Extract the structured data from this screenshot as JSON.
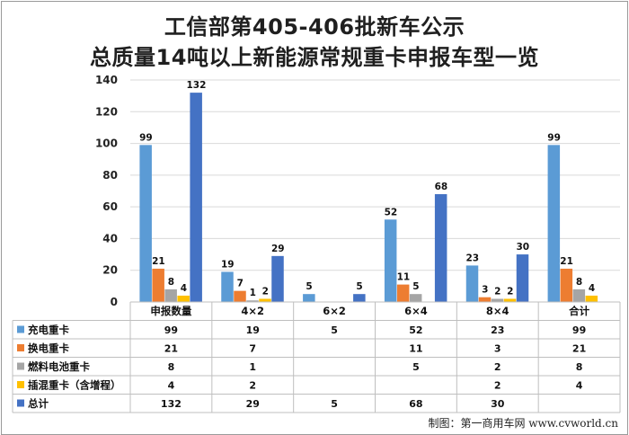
{
  "title_line1": "工信部第405-406批新车公示",
  "title_line2": "总质量14吨以上新能源常规重卡申报车型一览",
  "credit": "制图：第一商用车网 www.cvworld.cn",
  "chart_data": {
    "type": "bar",
    "categories": [
      "申报数量",
      "4×2",
      "6×2",
      "6×4",
      "8×4",
      "合计"
    ],
    "ylim": [
      0,
      140
    ],
    "yticks": [
      0,
      20,
      40,
      60,
      80,
      100,
      120,
      140
    ],
    "grid": true,
    "legend": "data-table",
    "series": [
      {
        "name": "充电重卡",
        "color": "#5b9bd5",
        "values": [
          99,
          19,
          5,
          52,
          23,
          99
        ]
      },
      {
        "name": "换电重卡",
        "color": "#ed7d31",
        "values": [
          21,
          7,
          null,
          11,
          3,
          21
        ]
      },
      {
        "name": "燃料电池重卡",
        "color": "#a5a5a5",
        "values": [
          8,
          1,
          null,
          5,
          2,
          8
        ]
      },
      {
        "name": "插混重卡（含增程）",
        "color": "#ffc000",
        "values": [
          4,
          2,
          null,
          null,
          2,
          4
        ]
      },
      {
        "name": "总计",
        "color": "#4472c4",
        "values": [
          132,
          29,
          5,
          68,
          30,
          null
        ]
      }
    ]
  }
}
